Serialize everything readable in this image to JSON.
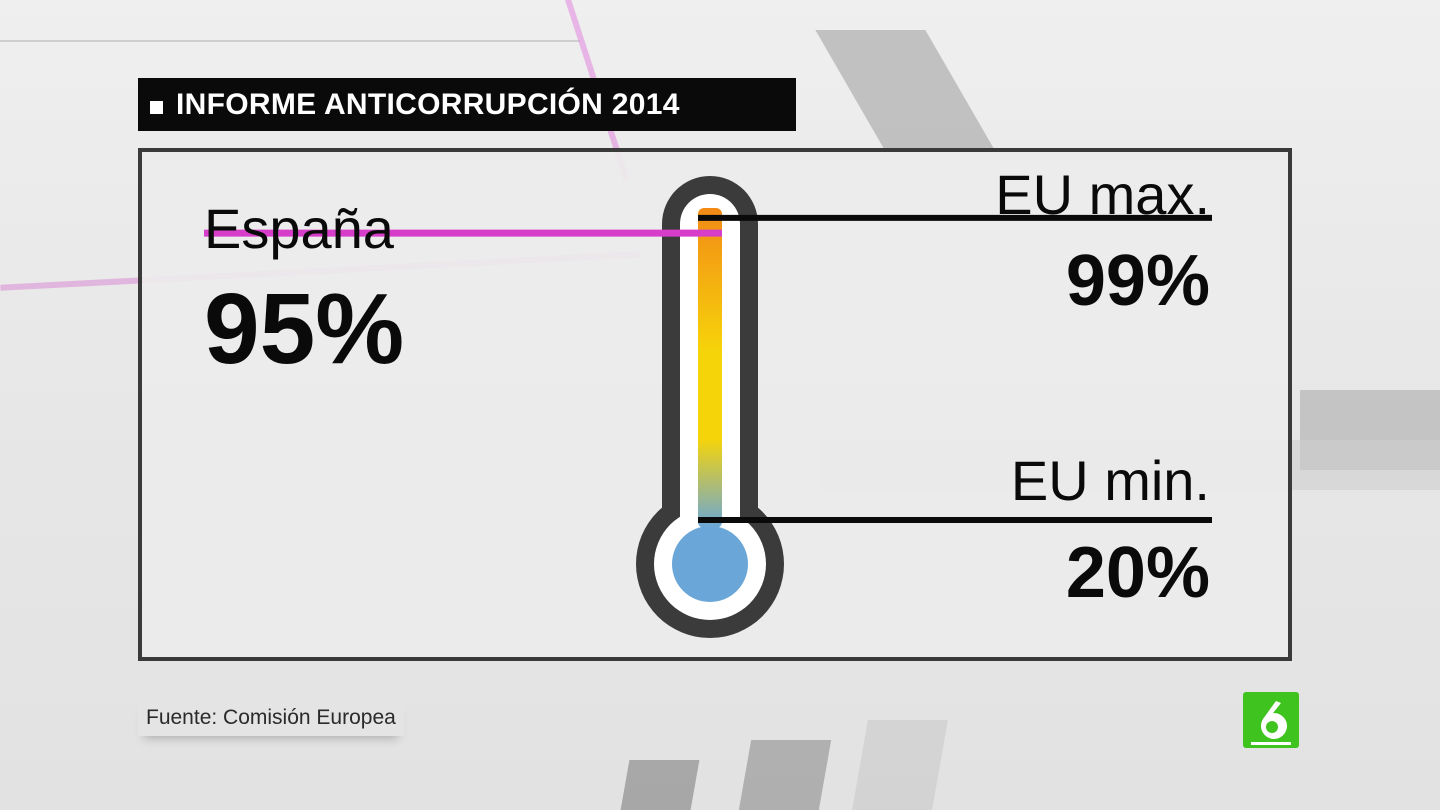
{
  "title": "INFORME ANTICORRUPCIÓN 2014",
  "spain": {
    "name": "España",
    "value": "95%",
    "level": 0.95
  },
  "eu_max": {
    "name": "EU max.",
    "value": "99%",
    "level": 0.99
  },
  "eu_min": {
    "name": "EU min.",
    "value": "20%",
    "level": 0.2
  },
  "source": "Fuente: Comisión Europea",
  "colors": {
    "title_bg": "#0a0a0a",
    "spain_marker": "#d63ec9",
    "thermo_top": "#f28a16",
    "thermo_mid": "#f6d40a",
    "thermo_bottom": "#6aa7d8",
    "bulb": "#6aa7d8",
    "thermo_outline": "#3b3b3b",
    "logo": "#3fc31f"
  },
  "logo_icon": "la-sexta-logo-icon"
}
